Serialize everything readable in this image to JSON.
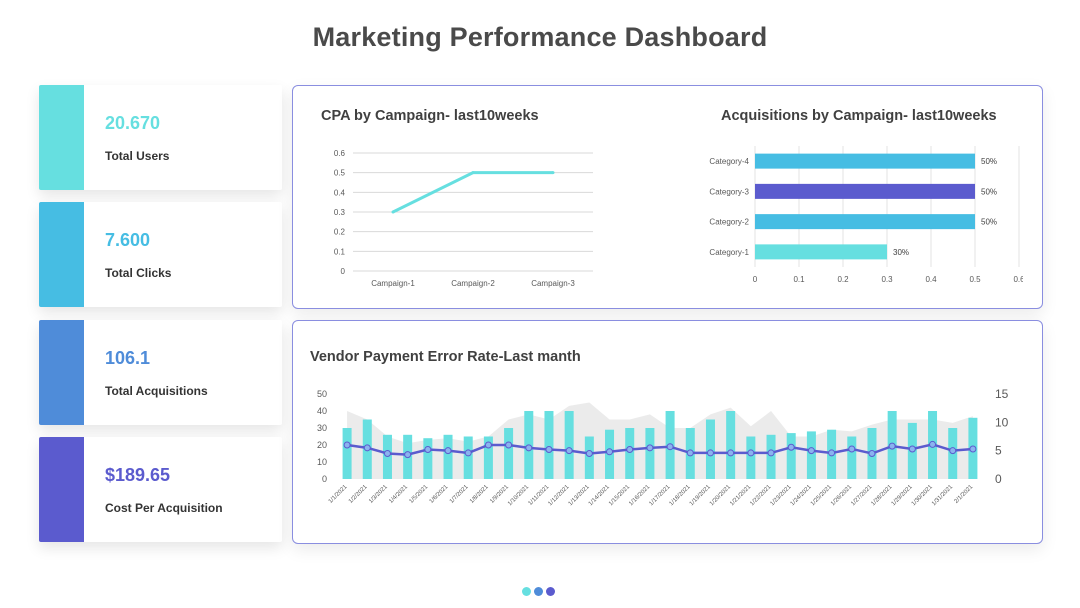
{
  "header": {
    "title": "Marketing Performance Dashboard"
  },
  "kpis": [
    {
      "value": "20.670",
      "label": "Total Users",
      "color": "#66dfe0"
    },
    {
      "value": "7.600",
      "label": "Total Clicks",
      "color": "#46bde3"
    },
    {
      "value": "106.1",
      "label": "Total Acquisitions",
      "color": "#4f8cd9"
    },
    {
      "value": "$189.65",
      "label": "Cost Per Acquisition",
      "color": "#5b5bce"
    }
  ],
  "panels": {
    "cpa_title": "CPA by Campaign- last10weeks",
    "acq_title": "Acquisitions by Campaign- last10weeks",
    "vendor_title": "Vendor Payment Error Rate-Last manth"
  },
  "pager": {
    "colors": [
      "#66dfe0",
      "#4f8cd9",
      "#5b5bce"
    ]
  },
  "chart_data": [
    {
      "type": "line",
      "title": "CPA by Campaign- last10weeks",
      "categories": [
        "Campaign-1",
        "Campaign-2",
        "Campaign-3"
      ],
      "series": [
        {
          "values": [
            0.3,
            0.5,
            0.5
          ],
          "color": "#66dfe0"
        }
      ],
      "ylim": [
        0,
        0.6
      ],
      "yticks": [
        "0",
        "0.1",
        "0.2",
        "0.3",
        "0.4",
        "0.5",
        "0.6"
      ],
      "grid": true
    },
    {
      "type": "bar",
      "orientation": "horizontal",
      "title": "Acquisitions by Campaign- last10weeks",
      "categories": [
        "Category-4",
        "Category-3",
        "Category-2",
        "Category-1"
      ],
      "values": [
        0.5,
        0.5,
        0.5,
        0.3
      ],
      "data_labels": [
        "50%",
        "50%",
        "50%",
        "30%"
      ],
      "colors": [
        "#46bde3",
        "#5b5bce",
        "#46bde3",
        "#66dfe0"
      ],
      "xlim": [
        0,
        0.6
      ],
      "xticks": [
        "0",
        "0.1",
        "0.2",
        "0.3",
        "0.4",
        "0.5",
        "0.6"
      ],
      "grid": true
    },
    {
      "type": "bar",
      "title": "Vendor Payment Error Rate-Last manth",
      "categories": [
        "1/1/2021",
        "1/2/2021",
        "1/3/2021",
        "1/4/2021",
        "1/5/2021",
        "1/6/2021",
        "1/7/2021",
        "1/8/2021",
        "1/9/2021",
        "1/10/2021",
        "1/11/2021",
        "1/12/2021",
        "1/13/2021",
        "1/14/2021",
        "1/15/2021",
        "1/16/2021",
        "1/17/2021",
        "1/18/2021",
        "1/19/2021",
        "1/20/2021",
        "1/21/2021",
        "1/22/2021",
        "1/23/2021",
        "1/24/2021",
        "1/25/2021",
        "1/26/2021",
        "1/27/2021",
        "1/28/2021",
        "1/29/2021",
        "1/30/2021",
        "1/31/2021",
        "2/1/2021"
      ],
      "series": [
        {
          "type": "bar",
          "axis": "left",
          "color": "#66dfe0",
          "values": [
            30,
            35,
            26,
            26,
            24,
            26,
            25,
            25,
            30,
            40,
            40,
            40,
            25,
            29,
            30,
            30,
            40,
            30,
            35,
            40,
            25,
            26,
            27,
            28,
            29,
            25,
            30,
            40,
            33,
            40,
            30,
            36
          ]
        },
        {
          "type": "line",
          "axis": "right",
          "color": "#5b5bce",
          "values": [
            6,
            5.5,
            4.5,
            4.3,
            5.2,
            5,
            4.6,
            6,
            6,
            5.5,
            5.2,
            5,
            4.5,
            4.8,
            5.2,
            5.5,
            5.7,
            4.6,
            4.6,
            4.6,
            4.6,
            4.6,
            5.6,
            5,
            4.6,
            5.3,
            4.5,
            5.8,
            5.3,
            6.1,
            5,
            5.3
          ]
        },
        {
          "type": "area",
          "axis": "left",
          "color": "#ebebeb",
          "values": [
            40,
            35,
            25,
            21,
            23,
            24,
            22,
            25,
            35,
            38,
            35,
            43,
            45,
            35,
            35,
            38,
            30,
            30,
            38,
            42,
            31,
            40,
            25,
            25,
            29,
            28,
            32,
            35,
            35,
            35,
            33,
            37
          ]
        }
      ],
      "ylim_left": [
        0,
        50
      ],
      "yticks_left": [
        "0",
        "10",
        "20",
        "30",
        "40",
        "50"
      ],
      "ylim_right": [
        0,
        15
      ],
      "yticks_right": [
        "0",
        "5",
        "10",
        "15"
      ],
      "grid": false
    }
  ]
}
